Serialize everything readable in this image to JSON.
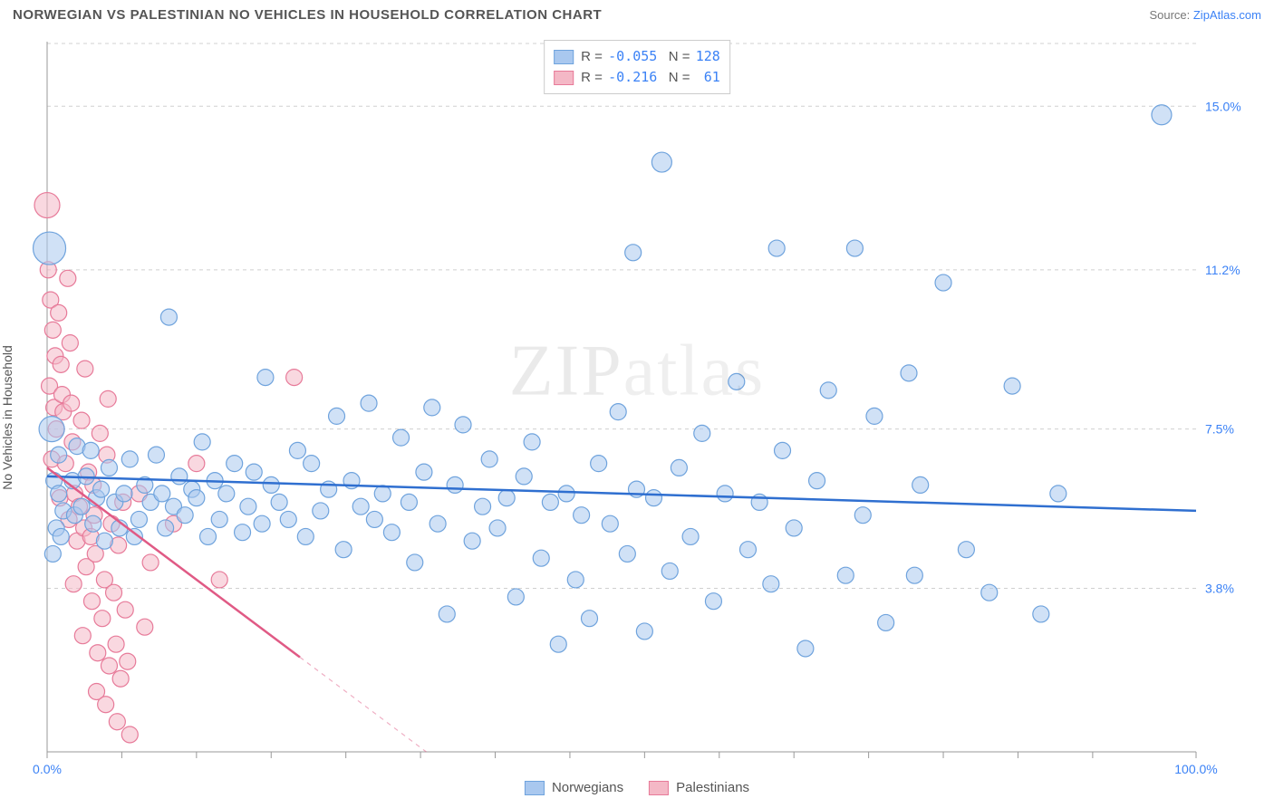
{
  "header": {
    "title": "NORWEGIAN VS PALESTINIAN NO VEHICLES IN HOUSEHOLD CORRELATION CHART",
    "source_prefix": "Source: ",
    "source_link": "ZipAtlas.com"
  },
  "chart": {
    "type": "scatter",
    "watermark": "ZIPatlas",
    "ylabel": "No Vehicles in Household",
    "xlim": [
      0,
      100
    ],
    "ylim": [
      0,
      16.5
    ],
    "x_ticks_minor": [
      0,
      6.5,
      13,
      19.5,
      26,
      32.5,
      39,
      45.5,
      52,
      58.5,
      65,
      71.5,
      78,
      84.5,
      91,
      100
    ],
    "x_tick_labels": [
      {
        "x": 0,
        "label": "0.0%"
      },
      {
        "x": 100,
        "label": "100.0%"
      }
    ],
    "y_grid": [
      {
        "y": 3.8,
        "label": "3.8%"
      },
      {
        "y": 7.5,
        "label": "7.5%"
      },
      {
        "y": 11.2,
        "label": "11.2%"
      },
      {
        "y": 15.0,
        "label": "15.0%"
      }
    ],
    "plot_background": "#ffffff",
    "grid_color": "#d0d0d0",
    "axis_color": "#999999",
    "series": [
      {
        "name": "Norwegians",
        "color_fill": "#a9c8ef",
        "color_stroke": "#6fa3dd",
        "fill_opacity": 0.55,
        "marker_r": 9,
        "trend": {
          "x1": 0,
          "y1": 6.4,
          "x2": 100,
          "y2": 5.6,
          "color": "#2f6fd0",
          "width": 2.5,
          "dash_after_x": null
        },
        "R": "-0.055",
        "N": "128",
        "points": [
          [
            0.2,
            11.7,
            18
          ],
          [
            0.4,
            7.5,
            14
          ],
          [
            0.6,
            6.3
          ],
          [
            0.8,
            5.2
          ],
          [
            0.5,
            4.6
          ],
          [
            1.0,
            6.0
          ],
          [
            1.2,
            5.0
          ],
          [
            1.4,
            5.6
          ],
          [
            1.0,
            6.9
          ],
          [
            2.2,
            6.3
          ],
          [
            2.4,
            5.5
          ],
          [
            2.6,
            7.1
          ],
          [
            3.0,
            5.7
          ],
          [
            3.4,
            6.4
          ],
          [
            3.8,
            7.0
          ],
          [
            4.0,
            5.3
          ],
          [
            4.3,
            5.9
          ],
          [
            4.7,
            6.1
          ],
          [
            5.0,
            4.9
          ],
          [
            5.4,
            6.6
          ],
          [
            5.9,
            5.8
          ],
          [
            6.3,
            5.2
          ],
          [
            6.7,
            6.0
          ],
          [
            7.2,
            6.8
          ],
          [
            7.6,
            5.0
          ],
          [
            8.0,
            5.4
          ],
          [
            8.5,
            6.2
          ],
          [
            9.0,
            5.8
          ],
          [
            9.5,
            6.9
          ],
          [
            10.0,
            6.0
          ],
          [
            10.3,
            5.2
          ],
          [
            10.6,
            10.1
          ],
          [
            11.0,
            5.7
          ],
          [
            11.5,
            6.4
          ],
          [
            12.0,
            5.5
          ],
          [
            12.6,
            6.1
          ],
          [
            13.0,
            5.9
          ],
          [
            13.5,
            7.2
          ],
          [
            14.0,
            5.0
          ],
          [
            14.6,
            6.3
          ],
          [
            15.0,
            5.4
          ],
          [
            15.6,
            6.0
          ],
          [
            16.3,
            6.7
          ],
          [
            17.0,
            5.1
          ],
          [
            17.5,
            5.7
          ],
          [
            18.0,
            6.5
          ],
          [
            18.7,
            5.3
          ],
          [
            19.0,
            8.7
          ],
          [
            19.5,
            6.2
          ],
          [
            20.2,
            5.8
          ],
          [
            21.0,
            5.4
          ],
          [
            21.8,
            7.0
          ],
          [
            22.5,
            5.0
          ],
          [
            23.0,
            6.7
          ],
          [
            23.8,
            5.6
          ],
          [
            24.5,
            6.1
          ],
          [
            25.2,
            7.8
          ],
          [
            25.8,
            4.7
          ],
          [
            26.5,
            6.3
          ],
          [
            27.3,
            5.7
          ],
          [
            28.0,
            8.1
          ],
          [
            28.5,
            5.4
          ],
          [
            29.2,
            6.0
          ],
          [
            30.0,
            5.1
          ],
          [
            30.8,
            7.3
          ],
          [
            31.5,
            5.8
          ],
          [
            32.0,
            4.4
          ],
          [
            32.8,
            6.5
          ],
          [
            33.5,
            8.0
          ],
          [
            34.0,
            5.3
          ],
          [
            34.8,
            3.2
          ],
          [
            35.5,
            6.2
          ],
          [
            36.2,
            7.6
          ],
          [
            37.0,
            4.9
          ],
          [
            37.9,
            5.7
          ],
          [
            38.5,
            6.8
          ],
          [
            39.2,
            5.2
          ],
          [
            40.0,
            5.9
          ],
          [
            40.8,
            3.6
          ],
          [
            41.5,
            6.4
          ],
          [
            42.2,
            7.2
          ],
          [
            43.0,
            4.5
          ],
          [
            43.8,
            5.8
          ],
          [
            44.5,
            2.5
          ],
          [
            45.2,
            6.0
          ],
          [
            46.0,
            4.0
          ],
          [
            46.5,
            5.5
          ],
          [
            47.2,
            3.1
          ],
          [
            48.0,
            6.7
          ],
          [
            49.0,
            5.3
          ],
          [
            49.7,
            7.9
          ],
          [
            50.5,
            4.6
          ],
          [
            51.0,
            11.6
          ],
          [
            51.3,
            6.1
          ],
          [
            52.0,
            2.8
          ],
          [
            52.8,
            5.9
          ],
          [
            53.5,
            13.7,
            11
          ],
          [
            54.2,
            4.2
          ],
          [
            55.0,
            6.6
          ],
          [
            56.0,
            5.0
          ],
          [
            57.0,
            7.4
          ],
          [
            58.0,
            3.5
          ],
          [
            59.0,
            6.0
          ],
          [
            60.0,
            8.6
          ],
          [
            61.0,
            4.7
          ],
          [
            62.0,
            5.8
          ],
          [
            63.5,
            11.7
          ],
          [
            63.0,
            3.9
          ],
          [
            64.0,
            7.0
          ],
          [
            65.0,
            5.2
          ],
          [
            66.0,
            2.4
          ],
          [
            67.0,
            6.3
          ],
          [
            68.0,
            8.4
          ],
          [
            69.5,
            4.1
          ],
          [
            70.3,
            11.7
          ],
          [
            71.0,
            5.5
          ],
          [
            72.0,
            7.8
          ],
          [
            73.0,
            3.0
          ],
          [
            75.0,
            8.8
          ],
          [
            75.5,
            4.1
          ],
          [
            76.0,
            6.2
          ],
          [
            78.0,
            10.9
          ],
          [
            80.0,
            4.7
          ],
          [
            82.0,
            3.7
          ],
          [
            84.0,
            8.5
          ],
          [
            86.5,
            3.2
          ],
          [
            88.0,
            6.0
          ],
          [
            97.0,
            14.8,
            11
          ]
        ]
      },
      {
        "name": "Palestinians",
        "color_fill": "#f4b8c6",
        "color_stroke": "#e77a99",
        "fill_opacity": 0.55,
        "marker_r": 9,
        "trend": {
          "x1": 0,
          "y1": 6.6,
          "x2": 33,
          "y2": 0,
          "color": "#e05a85",
          "width": 2.5,
          "dash_after_x": 22
        },
        "R": "-0.216",
        "N": " 61",
        "points": [
          [
            0.0,
            12.7,
            14
          ],
          [
            0.1,
            11.2
          ],
          [
            0.3,
            10.5
          ],
          [
            0.5,
            9.8
          ],
          [
            0.7,
            9.2
          ],
          [
            0.2,
            8.5
          ],
          [
            0.6,
            8.0
          ],
          [
            0.8,
            7.5
          ],
          [
            0.4,
            6.8
          ],
          [
            1.0,
            10.2
          ],
          [
            1.2,
            9.0
          ],
          [
            1.4,
            7.9
          ],
          [
            1.6,
            6.7
          ],
          [
            1.1,
            5.9
          ],
          [
            1.8,
            11.0
          ],
          [
            1.3,
            8.3
          ],
          [
            1.9,
            5.4
          ],
          [
            2.0,
            9.5
          ],
          [
            2.2,
            7.2
          ],
          [
            2.4,
            6.0
          ],
          [
            2.6,
            4.9
          ],
          [
            2.1,
            8.1
          ],
          [
            2.8,
            5.7
          ],
          [
            2.3,
            3.9
          ],
          [
            3.0,
            7.7
          ],
          [
            3.2,
            5.2
          ],
          [
            3.4,
            4.3
          ],
          [
            3.6,
            6.5
          ],
          [
            3.1,
            2.7
          ],
          [
            3.8,
            5.0
          ],
          [
            3.3,
            8.9
          ],
          [
            3.9,
            3.5
          ],
          [
            4.0,
            6.2
          ],
          [
            4.2,
            4.6
          ],
          [
            4.4,
            2.3
          ],
          [
            4.6,
            7.4
          ],
          [
            4.1,
            5.5
          ],
          [
            4.8,
            3.1
          ],
          [
            4.3,
            1.4
          ],
          [
            5.0,
            4.0
          ],
          [
            5.2,
            6.9
          ],
          [
            5.4,
            2.0
          ],
          [
            5.6,
            5.3
          ],
          [
            5.1,
            1.1
          ],
          [
            5.8,
            3.7
          ],
          [
            5.3,
            8.2
          ],
          [
            6.0,
            2.5
          ],
          [
            6.2,
            4.8
          ],
          [
            6.4,
            1.7
          ],
          [
            6.6,
            5.8
          ],
          [
            6.1,
            0.7
          ],
          [
            6.8,
            3.3
          ],
          [
            7.0,
            2.1
          ],
          [
            7.2,
            0.4
          ],
          [
            8.0,
            6.0
          ],
          [
            8.5,
            2.9
          ],
          [
            9.0,
            4.4
          ],
          [
            11.0,
            5.3
          ],
          [
            13.0,
            6.7
          ],
          [
            15.0,
            4.0
          ],
          [
            21.5,
            8.7
          ]
        ]
      }
    ],
    "bottom_legend": [
      {
        "label": "Norwegians",
        "fill": "#a9c8ef",
        "stroke": "#6fa3dd"
      },
      {
        "label": "Palestinians",
        "fill": "#f4b8c6",
        "stroke": "#e77a99"
      }
    ]
  }
}
